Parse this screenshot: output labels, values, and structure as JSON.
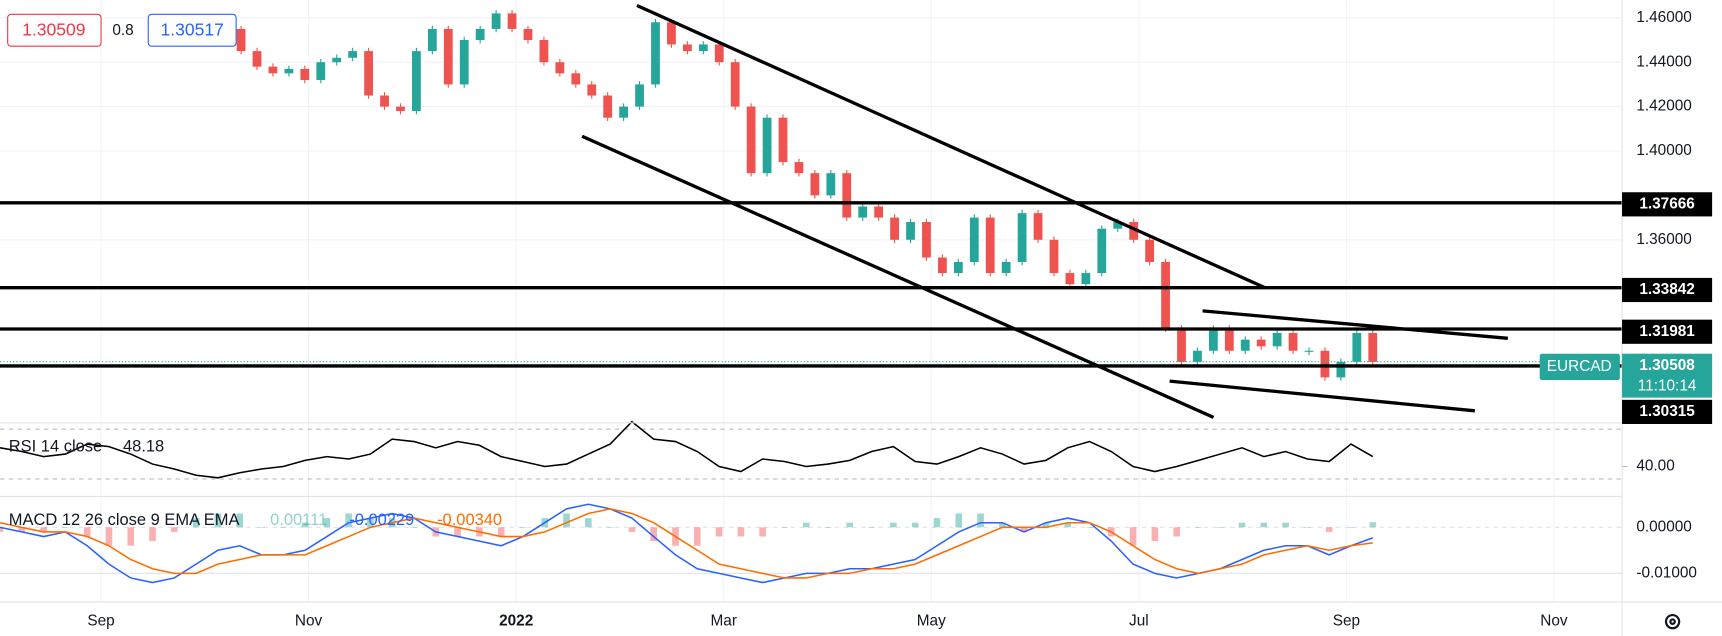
{
  "chart_data": {
    "type": "candlestick",
    "symbol": "EURCAD",
    "countdown": "11:10:14",
    "legend": {
      "bid": "1.30509",
      "spread": "0.8",
      "ask": "1.30517"
    },
    "time_labels": [
      "Sep",
      "Nov",
      "2022",
      "Mar",
      "May",
      "Jul",
      "Sep",
      "Nov"
    ],
    "ylim": [
      1.278,
      1.468
    ],
    "yticks": [
      {
        "value": 1.46,
        "label": "1.46000"
      },
      {
        "value": 1.44,
        "label": "1.44000"
      },
      {
        "value": 1.42,
        "label": "1.42000"
      },
      {
        "value": 1.4,
        "label": "1.40000"
      },
      {
        "value": 1.36,
        "label": "1.36000"
      }
    ],
    "grid": true,
    "up_color": "#26a69a",
    "down_color": "#ef5350",
    "closes": [
      1.455,
      1.445,
      1.438,
      1.435,
      1.437,
      1.432,
      1.44,
      1.442,
      1.445,
      1.425,
      1.42,
      1.418,
      1.445,
      1.455,
      1.43,
      1.45,
      1.455,
      1.462,
      1.455,
      1.45,
      1.44,
      1.435,
      1.43,
      1.425,
      1.415,
      1.42,
      1.43,
      1.458,
      1.448,
      1.445,
      1.448,
      1.44,
      1.42,
      1.39,
      1.415,
      1.395,
      1.39,
      1.38,
      1.39,
      1.37,
      1.375,
      1.37,
      1.36,
      1.368,
      1.352,
      1.345,
      1.35,
      1.37,
      1.345,
      1.35,
      1.372,
      1.36,
      1.345,
      1.34,
      1.345,
      1.365,
      1.368,
      1.36,
      1.35,
      1.32,
      1.305,
      1.31,
      1.32,
      1.31,
      1.315,
      1.312,
      1.318,
      1.31,
      1.31,
      1.298,
      1.305,
      1.318,
      1.305
    ],
    "levels": [
      {
        "value": 1.37666,
        "label": "1.37666"
      },
      {
        "value": 1.33842,
        "label": "1.33842"
      },
      {
        "value": 1.31981,
        "label": "1.31981"
      },
      {
        "value": 1.30315,
        "label": "1.30315"
      }
    ],
    "last_price": {
      "value": 1.30508,
      "label": "1.30508"
    },
    "rsi": {
      "name": "RSI 14 close",
      "value_label": "48.18",
      "color": "#000000",
      "ylim": [
        16,
        75
      ],
      "yticks": [
        {
          "value": 40,
          "label": "40.00"
        }
      ],
      "bands": [
        70,
        30
      ],
      "values": [
        55,
        52,
        48,
        50,
        58,
        56,
        50,
        42,
        38,
        33,
        31,
        35,
        38,
        40,
        45,
        48,
        46,
        50,
        62,
        60,
        55,
        60,
        57,
        48,
        44,
        40,
        42,
        50,
        58,
        76,
        62,
        60,
        52,
        40,
        36,
        46,
        44,
        40,
        42,
        45,
        52,
        56,
        44,
        42,
        48,
        55,
        50,
        42,
        45,
        55,
        60,
        52,
        40,
        36,
        40,
        45,
        50,
        55,
        48,
        52,
        46,
        44,
        58,
        48
      ]
    },
    "macd": {
      "name": "MACD 12 26 close 9 EMA EMA",
      "ylim": [
        -0.0162,
        0.0067
      ],
      "yticks": [
        {
          "value": 0,
          "label": "0.00000"
        },
        {
          "value": -0.01,
          "label": "-0.01000"
        }
      ],
      "series": [
        {
          "name": "Histogram",
          "value_label": "0.00111",
          "color": "#26a69a",
          "down_color": "#ef5350",
          "values": [
            -0.001,
            -0.001,
            -0.001,
            0,
            -0.002,
            -0.004,
            -0.004,
            -0.003,
            -0.001,
            0.002,
            0.003,
            0.003,
            0,
            0,
            0.001,
            0.002,
            0.003,
            0.002,
            0.002,
            0,
            -0.002,
            -0.002,
            -0.002,
            -0.002,
            0,
            0.002,
            0.003,
            0.002,
            0,
            -0.001,
            -0.003,
            -0.004,
            -0.004,
            -0.002,
            -0.002,
            -0.002,
            0,
            0.001,
            0,
            0.001,
            0,
            0.001,
            0.001,
            0.002,
            0.003,
            0.003,
            0.001,
            -0.001,
            0.001,
            0.001,
            0,
            -0.002,
            -0.004,
            -0.003,
            -0.002,
            0,
            0,
            0.001,
            0.001,
            0.001,
            0,
            -0.001,
            0,
            0.00111
          ]
        },
        {
          "name": "MACD",
          "value_label": "-0.00229",
          "color": "#2962ff",
          "values": [
            0,
            -0.001,
            -0.002,
            -0.001,
            -0.004,
            -0.008,
            -0.011,
            -0.012,
            -0.011,
            -0.008,
            -0.005,
            -0.004,
            -0.006,
            -0.006,
            -0.005,
            -0.002,
            0.001,
            0.002,
            0.003,
            0.002,
            -0.001,
            -0.002,
            -0.003,
            -0.004,
            -0.002,
            0.001,
            0.004,
            0.005,
            0.004,
            0.002,
            -0.002,
            -0.006,
            -0.009,
            -0.01,
            -0.011,
            -0.012,
            -0.011,
            -0.01,
            -0.01,
            -0.009,
            -0.009,
            -0.008,
            -0.007,
            -0.004,
            -0.001,
            0.001,
            0.001,
            -0.001,
            0.001,
            0.002,
            0.001,
            -0.003,
            -0.008,
            -0.01,
            -0.011,
            -0.01,
            -0.009,
            -0.007,
            -0.005,
            -0.004,
            -0.004,
            -0.006,
            -0.004,
            -0.00229
          ]
        },
        {
          "name": "Signal",
          "value_label": "-0.00340",
          "color": "#ff6d00",
          "values": [
            0.001,
            0,
            -0.001,
            -0.001,
            -0.002,
            -0.004,
            -0.007,
            -0.009,
            -0.01,
            -0.01,
            -0.008,
            -0.007,
            -0.006,
            -0.006,
            -0.006,
            -0.004,
            -0.002,
            0,
            0.001,
            0.002,
            0.001,
            0,
            -0.001,
            -0.002,
            -0.002,
            -0.001,
            0.001,
            0.003,
            0.004,
            0.003,
            0.001,
            -0.002,
            -0.005,
            -0.008,
            -0.009,
            -0.01,
            -0.011,
            -0.011,
            -0.01,
            -0.01,
            -0.009,
            -0.009,
            -0.008,
            -0.006,
            -0.004,
            -0.002,
            0,
            0,
            0,
            0.001,
            0.001,
            -0.001,
            -0.004,
            -0.007,
            -0.009,
            -0.01,
            -0.009,
            -0.008,
            -0.006,
            -0.005,
            -0.004,
            -0.005,
            -0.004,
            -0.0034
          ]
        }
      ]
    }
  }
}
